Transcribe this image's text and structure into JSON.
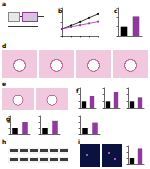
{
  "images": [
    {
      "label": "a",
      "kind": "schedule"
    },
    {
      "label": "d",
      "kind": "histology"
    },
    {
      "label": "e",
      "kind": "histology"
    },
    {
      "label": "h",
      "kind": "blot"
    },
    {
      "label": "i",
      "kind": "fluorescence"
    }
  ],
  "chart_data": [
    {
      "type": "line",
      "title": "b",
      "x": [
        0,
        1,
        2,
        3,
        4
      ],
      "xlim": [
        0,
        4
      ],
      "xticks": [
        0,
        1,
        2,
        3,
        4
      ],
      "series": [
        {
          "color": "#000000",
          "values": [
            20,
            21,
            22,
            23.2,
            24.3
          ],
          "marker": "circle"
        },
        {
          "color": "#8e3a9a",
          "values": [
            20,
            20.6,
            21.1,
            21.6,
            22.1
          ],
          "marker": "circle"
        }
      ],
      "ylim": [
        18,
        26
      ],
      "yticks": [
        18,
        22,
        26
      ],
      "grid": false,
      "tick_labels": false
    },
    {
      "type": "bar",
      "title": "c",
      "categories": [
        null,
        null
      ],
      "values": [
        1.0,
        2.1
      ],
      "colors": [
        "#000000",
        "#8e3a9a"
      ],
      "ylim": [
        0,
        3
      ],
      "yticks": [
        0,
        1,
        2,
        3
      ],
      "grid": false,
      "tick_labels": false
    },
    {
      "type": "bar",
      "title": "f",
      "categories": [
        null,
        null
      ],
      "values": [
        1.0,
        1.8
      ],
      "colors": [
        "#000000",
        "#8e3a9a"
      ],
      "ylim": [
        0,
        3
      ],
      "yticks": [
        0,
        1,
        2,
        3
      ],
      "grid": false,
      "tick_labels": false
    },
    {
      "type": "bar",
      "categories": [
        null,
        null
      ],
      "values": [
        1.0,
        2.4
      ],
      "colors": [
        "#000000",
        "#8e3a9a"
      ],
      "ylim": [
        0,
        3
      ],
      "yticks": [
        0,
        1,
        2,
        3
      ],
      "grid": false,
      "tick_labels": false
    },
    {
      "type": "bar",
      "categories": [
        null,
        null
      ],
      "values": [
        1.0,
        1.6
      ],
      "colors": [
        "#000000",
        "#8e3a9a"
      ],
      "ylim": [
        0,
        3
      ],
      "yticks": [
        0,
        1,
        2,
        3
      ],
      "grid": false,
      "tick_labels": false
    },
    {
      "type": "bar",
      "title": "g",
      "categories": [
        null,
        null
      ],
      "values": [
        1.0,
        2.0
      ],
      "colors": [
        "#000000",
        "#8e3a9a"
      ],
      "ylim": [
        0,
        3
      ],
      "yticks": [
        0,
        1,
        2,
        3
      ],
      "grid": false,
      "tick_labels": false
    },
    {
      "type": "bar",
      "categories": [
        null,
        null
      ],
      "values": [
        1.0,
        2.2
      ],
      "colors": [
        "#000000",
        "#8e3a9a"
      ],
      "ylim": [
        0,
        3
      ],
      "yticks": [
        0,
        1,
        2,
        3
      ],
      "grid": false,
      "tick_labels": false
    },
    {
      "type": "bar",
      "categories": [
        null,
        null
      ],
      "values": [
        1.0,
        1.9
      ],
      "colors": [
        "#000000",
        "#8e3a9a"
      ],
      "ylim": [
        0,
        3
      ],
      "yticks": [
        0,
        1,
        2,
        3
      ],
      "grid": false,
      "tick_labels": false
    },
    {
      "type": "bar",
      "categories": [
        null,
        null
      ],
      "values": [
        1.0,
        2.6
      ],
      "colors": [
        "#000000",
        "#8e3a9a"
      ],
      "ylim": [
        0,
        3
      ],
      "yticks": [
        0,
        1,
        2,
        3
      ],
      "grid": false,
      "tick_labels": false
    }
  ]
}
